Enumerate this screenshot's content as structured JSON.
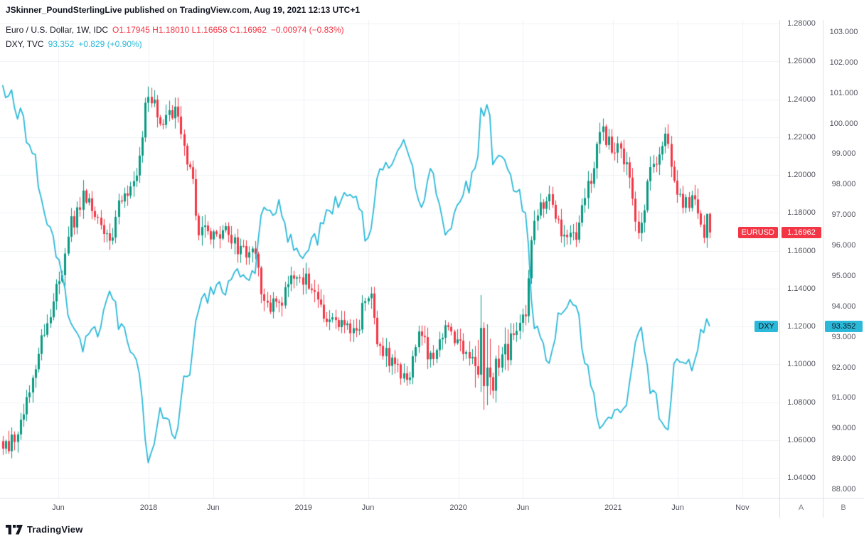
{
  "topbar": {
    "publisher": "JSkinner_PoundSterlingLive published on TradingView.com, Aug 19, 2021 12:13 UTC+1"
  },
  "legend": {
    "main": {
      "text": "Euro / U.S. Dollar, 1W, IDC",
      "ohlc": "O1.17945 H1.18010 L1.16658 C1.16962",
      "change": "−0.00974 (−0.83%)"
    },
    "overlay": {
      "text": "DXY, TVC",
      "value": "93.352",
      "change": "+0.829 (+0.90%)"
    }
  },
  "price_labels": {
    "eurusd": {
      "tag": "EURUSD",
      "value": "1.16962"
    },
    "dxy": {
      "tag": "DXY",
      "value": "93.352"
    }
  },
  "axis_buttons": {
    "a": "A",
    "b": "B"
  },
  "footer": {
    "brand": "TradingView"
  },
  "colors": {
    "up": "#089981",
    "down": "#f23645",
    "dxy_line": "#2cb9d9",
    "grid": "#eef0f4",
    "axis_text": "#50535e",
    "border": "#dde0e6",
    "label_eur_bg": "#f23645",
    "label_dxy_bg": "#2cb9d9"
  },
  "chart_data": {
    "type": "candlestick+line",
    "title": "Euro / U.S. Dollar, 1W, IDC with DXY, TVC overlay",
    "series": [
      {
        "name": "EURUSD",
        "type": "candlestick",
        "timeframe": "1W"
      },
      {
        "name": "DXY",
        "type": "line",
        "timeframe": "1W"
      }
    ],
    "eur_axis": {
      "min": 1.04,
      "max": 1.28,
      "step": 0.02,
      "decimals": 5
    },
    "dxy_axis": {
      "min": 88,
      "max": 103,
      "step": 1,
      "decimals": 3
    },
    "x_ticks": [
      {
        "label": "Jun",
        "month": 5
      },
      {
        "label": "2018",
        "month": 12
      },
      {
        "label": "Jun",
        "month": 17
      },
      {
        "label": "2019",
        "month": 24
      },
      {
        "label": "Jun",
        "month": 29
      },
      {
        "label": "2020",
        "month": 36
      },
      {
        "label": "Jun",
        "month": 41
      },
      {
        "label": "2021",
        "month": 48
      },
      {
        "label": "Jun",
        "month": 53
      },
      {
        "label": "Nov",
        "month": 58
      }
    ],
    "start_month": "2017-01",
    "weeks_per_month": 4.345,
    "eur_monthly": [
      1.065,
      1.058,
      1.066,
      1.09,
      1.117,
      1.142,
      1.175,
      1.188,
      1.181,
      1.165,
      1.19,
      1.201,
      1.241,
      1.23,
      1.232,
      1.208,
      1.17,
      1.168,
      1.17,
      1.16,
      1.161,
      1.131,
      1.132,
      1.146,
      1.145,
      1.137,
      1.122,
      1.121,
      1.117,
      1.137,
      1.108,
      1.099,
      1.09,
      1.115,
      1.102,
      1.121,
      1.109,
      1.103,
      1.1,
      1.095,
      1.11,
      1.124,
      1.178,
      1.19,
      1.172,
      1.165,
      1.193,
      1.222,
      1.214,
      1.207,
      1.173,
      1.202,
      1.219,
      1.186,
      1.187,
      1.17
    ],
    "dxy_monthly": [
      101.0,
      101.1,
      100.3,
      99.0,
      96.9,
      95.6,
      93.3,
      92.7,
      93.1,
      94.5,
      93.1,
      92.3,
      89.1,
      90.5,
      89.8,
      91.8,
      94.0,
      94.5,
      94.6,
      95.1,
      95.0,
      97.1,
      97.3,
      96.2,
      95.6,
      96.2,
      97.3,
      97.5,
      97.8,
      96.1,
      98.5,
      98.9,
      99.4,
      97.3,
      98.3,
      96.4,
      97.4,
      98.1,
      100.6,
      99.0,
      98.3,
      97.4,
      93.3,
      92.1,
      93.9,
      94.0,
      91.8,
      89.9,
      90.6,
      90.9,
      93.2,
      91.3,
      89.8,
      92.4,
      92.1,
      93.35
    ],
    "vol_monthly": [
      1,
      1,
      1,
      1,
      1,
      1,
      1,
      1,
      1,
      1,
      1,
      1,
      1,
      1,
      1,
      1,
      1,
      1,
      1,
      1,
      1,
      1,
      1,
      1,
      1,
      1,
      1,
      1,
      1,
      1,
      1,
      1,
      1,
      1,
      1,
      1,
      1,
      2,
      5,
      2,
      1.5,
      1,
      1,
      1,
      1,
      1,
      1,
      1,
      1,
      1,
      1,
      1,
      1,
      1,
      1,
      1
    ],
    "last_week": {
      "open": 1.17945,
      "high": 1.1801,
      "low": 1.16658,
      "close": 1.16962
    },
    "dxy_last": 93.352
  }
}
